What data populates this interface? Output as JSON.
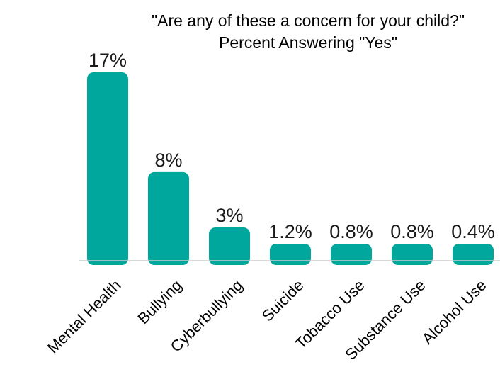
{
  "chart_data": {
    "type": "bar",
    "title": "\"Are any of these a concern for your child?\"",
    "subtitle": "Percent Answering \"Yes\"",
    "categories": [
      "Mental Health",
      "Bullying",
      "Cyberbullying",
      "Suicide",
      "Tobacco Use",
      "Substance Use",
      "Alcohol Use"
    ],
    "values": [
      17,
      8,
      3,
      1.2,
      0.8,
      0.8,
      0.4
    ],
    "value_labels": [
      "17%",
      "8%",
      "3%",
      "1.2%",
      "0.8%",
      "0.8%",
      "0.4%"
    ],
    "xlabel": "",
    "ylabel": "",
    "grid": false,
    "bar_color": "#00A79D",
    "baseline_color": "#cccccc"
  }
}
